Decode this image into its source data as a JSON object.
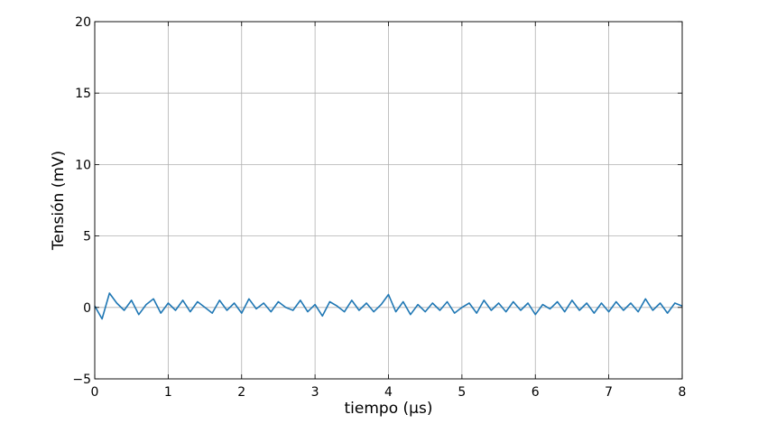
{
  "chart_data": {
    "type": "line",
    "xlabel": "tiempo (µs)",
    "ylabel": "Tensión (mV)",
    "xlim": [
      0,
      8
    ],
    "ylim": [
      -5,
      20
    ],
    "xticks": [
      0,
      1,
      2,
      3,
      4,
      5,
      6,
      7,
      8
    ],
    "yticks": [
      -5,
      0,
      5,
      10,
      15,
      20
    ],
    "xtick_labels": [
      "0",
      "1",
      "2",
      "3",
      "4",
      "5",
      "6",
      "7",
      "8"
    ],
    "ytick_labels": [
      "−5",
      "0",
      "5",
      "10",
      "15",
      "20"
    ],
    "grid": true,
    "line_color": "#1f77b4",
    "series": [
      {
        "x": [
          0.0,
          0.1,
          0.2,
          0.3,
          0.4,
          0.5,
          0.6,
          0.7,
          0.8,
          0.9,
          1.0,
          1.1,
          1.2,
          1.3,
          1.4,
          1.5,
          1.6,
          1.7,
          1.8,
          1.9,
          2.0,
          2.1,
          2.2,
          2.3,
          2.4,
          2.5,
          2.6,
          2.7,
          2.8,
          2.9,
          3.0,
          3.1,
          3.2,
          3.3,
          3.4,
          3.5,
          3.6,
          3.7,
          3.8,
          3.9,
          4.0,
          4.1,
          4.2,
          4.3,
          4.4,
          4.5,
          4.6,
          4.7,
          4.8,
          4.9,
          5.0,
          5.1,
          5.2,
          5.3,
          5.4,
          5.5,
          5.6,
          5.7,
          5.8,
          5.9,
          6.0,
          6.1,
          6.2,
          6.3,
          6.4,
          6.5,
          6.6,
          6.7,
          6.8,
          6.9,
          7.0,
          7.1,
          7.2,
          7.3,
          7.4,
          7.5,
          7.6,
          7.7,
          7.8,
          7.9,
          8.0
        ],
        "y": [
          0.1,
          -0.8,
          1.0,
          0.3,
          -0.2,
          0.5,
          -0.5,
          0.2,
          0.6,
          -0.4,
          0.3,
          -0.2,
          0.5,
          -0.3,
          0.4,
          0.0,
          -0.4,
          0.5,
          -0.2,
          0.3,
          -0.4,
          0.6,
          -0.1,
          0.3,
          -0.3,
          0.4,
          0.0,
          -0.2,
          0.5,
          -0.3,
          0.2,
          -0.6,
          0.4,
          0.1,
          -0.3,
          0.5,
          -0.2,
          0.3,
          -0.3,
          0.2,
          0.9,
          -0.3,
          0.4,
          -0.5,
          0.2,
          -0.3,
          0.3,
          -0.2,
          0.4,
          -0.4,
          0.0,
          0.3,
          -0.4,
          0.5,
          -0.2,
          0.3,
          -0.3,
          0.4,
          -0.2,
          0.3,
          -0.5,
          0.2,
          -0.1,
          0.4,
          -0.3,
          0.5,
          -0.2,
          0.3,
          -0.4,
          0.3,
          -0.3,
          0.4,
          -0.2,
          0.3,
          -0.3,
          0.6,
          -0.2,
          0.3,
          -0.4,
          0.3,
          0.1
        ]
      }
    ]
  }
}
